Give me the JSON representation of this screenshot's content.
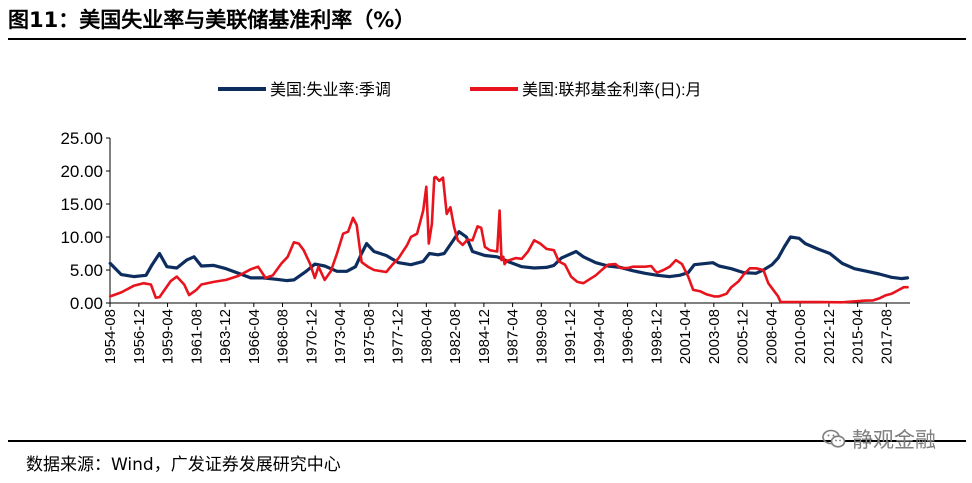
{
  "header": {
    "title": "图11：美国失业率与美联储基准利率（%）"
  },
  "footer": {
    "source": "数据来源：Wind，广发证券发展研究中心",
    "watermark": "静观金融"
  },
  "chart_data": {
    "type": "line",
    "title": "图11：美国失业率与美联储基准利率（%）",
    "xlabel": "",
    "ylabel": "",
    "ylim": [
      0,
      25
    ],
    "xlim": [
      1954.58,
      2019.5
    ],
    "y_ticks": [
      "0.00",
      "5.00",
      "10.00",
      "15.00",
      "20.00",
      "25.00"
    ],
    "y_tick_values": [
      0,
      5,
      10,
      15,
      20,
      25
    ],
    "x_tick_labels": [
      "1954-08",
      "1956-12",
      "1959-04",
      "1961-08",
      "1963-12",
      "1966-04",
      "1968-08",
      "1970-12",
      "1973-04",
      "1975-08",
      "1977-12",
      "1980-04",
      "1982-08",
      "1984-12",
      "1987-04",
      "1989-08",
      "1991-12",
      "1994-04",
      "1996-08",
      "1998-12",
      "2001-04",
      "2003-08",
      "2005-12",
      "2008-04",
      "2010-08",
      "2012-12",
      "2015-04",
      "2017-08"
    ],
    "x_tick_values": [
      1954.58,
      1956.92,
      1959.25,
      1961.58,
      1963.92,
      1966.25,
      1968.58,
      1970.92,
      1973.25,
      1975.58,
      1977.92,
      1980.25,
      1982.58,
      1984.92,
      1987.25,
      1989.58,
      1991.92,
      1994.25,
      1996.58,
      1998.92,
      2001.25,
      2003.58,
      2005.92,
      2008.25,
      2010.58,
      2012.92,
      2015.25,
      2017.58
    ],
    "legend_position": "top",
    "series": [
      {
        "name": "美国:失业率:季调",
        "color": "#0d2d5e",
        "x": [
          1954.6,
          1955.5,
          1956.5,
          1957.5,
          1958.0,
          1958.6,
          1959.2,
          1960.0,
          1960.8,
          1961.4,
          1962.0,
          1963.0,
          1964.0,
          1965.0,
          1966.0,
          1967.0,
          1968.0,
          1968.9,
          1969.5,
          1970.5,
          1971.2,
          1972.0,
          1973.0,
          1973.8,
          1974.5,
          1975.0,
          1975.4,
          1976.0,
          1977.0,
          1978.0,
          1979.0,
          1980.0,
          1980.5,
          1981.2,
          1981.7,
          1982.4,
          1982.9,
          1983.5,
          1984.0,
          1985.0,
          1986.0,
          1987.0,
          1988.0,
          1989.0,
          1990.0,
          1990.6,
          1991.2,
          1992.4,
          1993.0,
          1994.0,
          1995.0,
          1996.0,
          1997.0,
          1998.0,
          1999.0,
          2000.0,
          2000.8,
          2001.5,
          2002.0,
          2003.5,
          2004.0,
          2005.0,
          2006.0,
          2007.0,
          2007.6,
          2008.3,
          2008.8,
          2009.3,
          2009.8,
          2010.5,
          2011.0,
          2012.0,
          2013.0,
          2014.0,
          2015.0,
          2016.0,
          2017.0,
          2018.0,
          2018.8,
          2019.3
        ],
        "values": [
          6.0,
          4.3,
          4.0,
          4.2,
          5.8,
          7.5,
          5.5,
          5.3,
          6.5,
          7.0,
          5.6,
          5.7,
          5.2,
          4.5,
          3.8,
          3.8,
          3.6,
          3.4,
          3.5,
          4.8,
          5.9,
          5.6,
          4.8,
          4.8,
          5.5,
          7.5,
          9.0,
          7.8,
          7.2,
          6.1,
          5.8,
          6.3,
          7.5,
          7.3,
          7.5,
          9.4,
          10.8,
          10.0,
          7.8,
          7.2,
          7.0,
          6.2,
          5.5,
          5.3,
          5.4,
          5.7,
          6.8,
          7.8,
          7.0,
          6.1,
          5.6,
          5.4,
          4.9,
          4.5,
          4.2,
          4.0,
          4.2,
          4.6,
          5.8,
          6.1,
          5.6,
          5.2,
          4.6,
          4.5,
          5.0,
          5.8,
          6.8,
          8.5,
          10.0,
          9.8,
          9.0,
          8.2,
          7.5,
          6.0,
          5.2,
          4.8,
          4.4,
          3.9,
          3.7,
          3.8
        ]
      },
      {
        "name": "美国:联邦基金利率(日):月",
        "color": "#e8141d",
        "x": [
          1954.6,
          1955.5,
          1956.5,
          1957.3,
          1957.9,
          1958.3,
          1958.6,
          1959.5,
          1960.0,
          1960.6,
          1961.0,
          1961.6,
          1962.0,
          1963.0,
          1964.0,
          1965.0,
          1966.0,
          1966.6,
          1967.2,
          1967.8,
          1968.5,
          1969.0,
          1969.5,
          1969.9,
          1970.3,
          1970.8,
          1971.2,
          1971.5,
          1972.0,
          1972.5,
          1973.0,
          1973.5,
          1973.9,
          1974.3,
          1974.6,
          1975.0,
          1975.5,
          1976.0,
          1977.0,
          1977.5,
          1978.0,
          1978.7,
          1979.0,
          1979.5,
          1980.0,
          1980.25,
          1980.45,
          1980.7,
          1980.9,
          1981.0,
          1981.3,
          1981.6,
          1981.9,
          1982.2,
          1982.5,
          1982.8,
          1983.2,
          1983.6,
          1984.0,
          1984.4,
          1984.7,
          1985.0,
          1985.4,
          1985.7,
          1986.0,
          1986.2,
          1986.35,
          1986.5,
          1986.6,
          1986.8,
          1987.0,
          1987.5,
          1988.0,
          1988.5,
          1989.0,
          1989.5,
          1990.0,
          1990.6,
          1991.0,
          1991.5,
          1992.0,
          1992.5,
          1993.0,
          1994.0,
          1994.6,
          1995.0,
          1995.6,
          1996.0,
          1996.6,
          1997.0,
          1997.6,
          1998.0,
          1998.5,
          1998.8,
          1999.0,
          1999.5,
          2000.0,
          2000.5,
          2001.0,
          2001.5,
          2001.9,
          2002.5,
          2003.0,
          2003.6,
          2004.0,
          2004.6,
          2005.0,
          2005.6,
          2006.0,
          2006.5,
          2007.0,
          2007.6,
          2008.0,
          2008.4,
          2008.8,
          2009.0,
          2010.0,
          2012.0,
          2014.0,
          2015.9,
          2016.5,
          2017.0,
          2017.5,
          2018.0,
          2018.5,
          2019.0,
          2019.3
        ],
        "values": [
          1.0,
          1.6,
          2.6,
          3.0,
          2.8,
          0.8,
          0.9,
          3.3,
          4.0,
          2.8,
          1.2,
          2.0,
          2.8,
          3.2,
          3.5,
          4.1,
          5.1,
          5.5,
          3.8,
          4.2,
          6.0,
          7.0,
          9.2,
          9.0,
          8.0,
          6.0,
          3.8,
          5.5,
          3.5,
          4.8,
          7.5,
          10.5,
          10.8,
          12.9,
          11.8,
          6.2,
          5.5,
          5.0,
          4.7,
          5.8,
          6.8,
          8.8,
          10.0,
          10.5,
          14.0,
          17.6,
          9.0,
          12.0,
          19.0,
          19.1,
          18.5,
          19.0,
          13.5,
          14.5,
          11.5,
          9.5,
          8.8,
          9.6,
          9.5,
          11.6,
          11.4,
          8.5,
          8.0,
          7.9,
          7.8,
          14.0,
          6.5,
          7.0,
          5.9,
          6.4,
          6.5,
          6.8,
          6.7,
          7.8,
          9.5,
          9.0,
          8.2,
          8.0,
          6.3,
          5.8,
          4.0,
          3.2,
          3.0,
          4.2,
          5.2,
          5.8,
          5.9,
          5.3,
          5.3,
          5.5,
          5.5,
          5.5,
          5.6,
          4.9,
          4.6,
          5.0,
          5.5,
          6.5,
          5.9,
          4.0,
          2.0,
          1.75,
          1.3,
          1.0,
          1.0,
          1.4,
          2.4,
          3.3,
          4.3,
          5.25,
          5.25,
          5.0,
          3.0,
          2.0,
          1.0,
          0.16,
          0.15,
          0.14,
          0.1,
          0.36,
          0.4,
          0.7,
          1.15,
          1.4,
          1.9,
          2.4,
          2.4
        ]
      }
    ]
  }
}
